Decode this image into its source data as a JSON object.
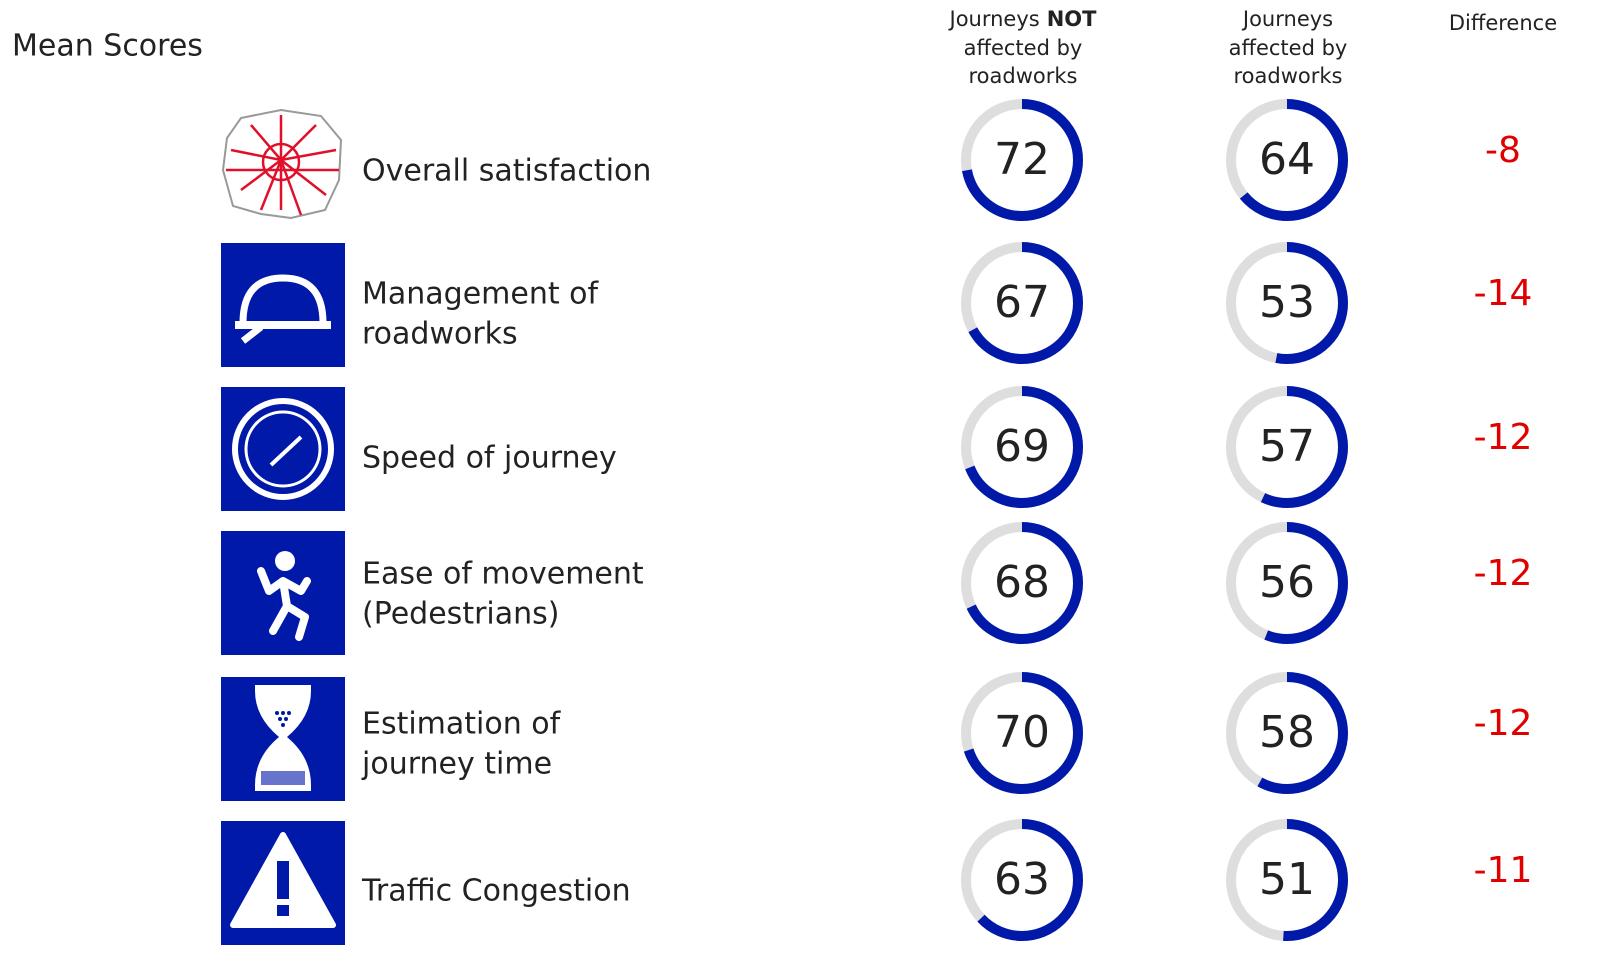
{
  "title": "Mean Scores",
  "columns": {
    "not_affected": {
      "lead": "Journeys",
      "emphasis": "NOT",
      "rest": [
        "affected by",
        "roadworks"
      ]
    },
    "affected": [
      "Journeys",
      "affected by",
      "roadworks"
    ],
    "difference": "Difference"
  },
  "gauge_max": 100,
  "colors": {
    "ring": "#0019a8",
    "track": "#dedede",
    "difference": "#e00000"
  },
  "rows": [
    {
      "label": [
        "Overall satisfaction"
      ],
      "not_affected": 72,
      "affected": 64,
      "difference": -8
    },
    {
      "label": [
        "Management of",
        "roadworks"
      ],
      "not_affected": 67,
      "affected": 53,
      "difference": -14
    },
    {
      "label": [
        "Speed of journey"
      ],
      "not_affected": 69,
      "affected": 57,
      "difference": -12
    },
    {
      "label": [
        "Ease of movement",
        "(Pedestrians)"
      ],
      "not_affected": 68,
      "affected": 56,
      "difference": -12
    },
    {
      "label": [
        "Estimation of",
        "journey time"
      ],
      "not_affected": 70,
      "affected": 58,
      "difference": -12
    },
    {
      "label": [
        "Traffic Congestion"
      ],
      "not_affected": 63,
      "affected": 51,
      "difference": -11
    }
  ]
}
